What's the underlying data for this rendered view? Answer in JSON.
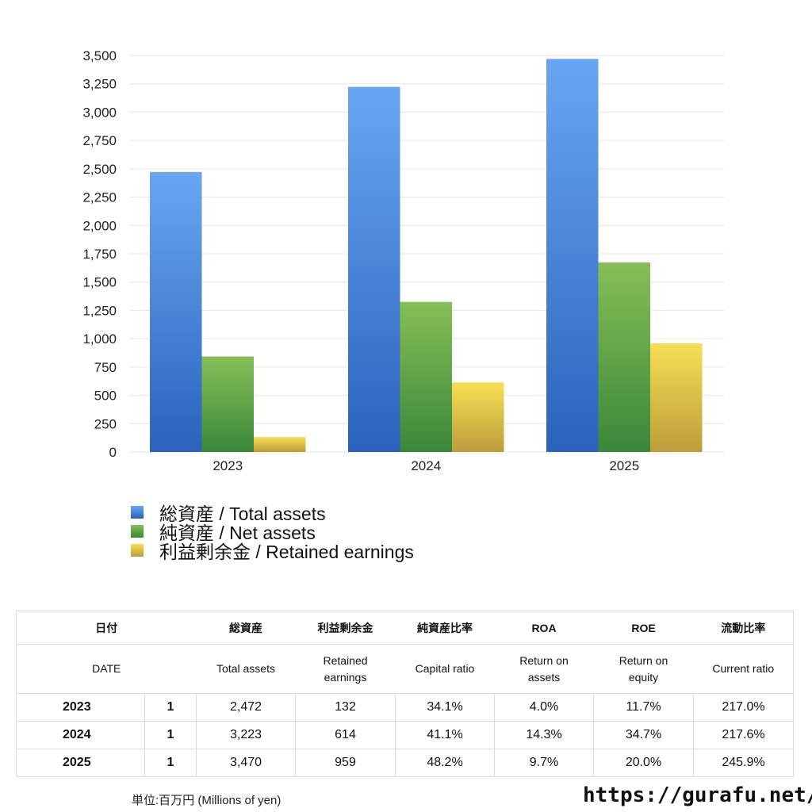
{
  "chart_data": {
    "type": "bar",
    "categories": [
      "2023",
      "2024",
      "2025"
    ],
    "series": [
      {
        "name": "総資産 / Total assets",
        "values": [
          2472,
          3223,
          3470
        ],
        "color_top": "#68a6f3",
        "color_bottom": "#2b62bb"
      },
      {
        "name": "純資産 / Net assets",
        "values": [
          843,
          1325,
          1673
        ],
        "color_top": "#86bf56",
        "color_bottom": "#3a873a"
      },
      {
        "name": "利益剰余金 / Retained earnings",
        "values": [
          132,
          614,
          959
        ],
        "color_top": "#f6df55",
        "color_bottom": "#bd9d3b"
      }
    ],
    "yticks": [
      "0",
      "250",
      "500",
      "750",
      "1,000",
      "1,250",
      "1,500",
      "1,750",
      "2,000",
      "2,250",
      "2,500",
      "2,750",
      "3,000",
      "3,250",
      "3,500"
    ],
    "ylim": [
      0,
      3500
    ],
    "grid": true,
    "legend_placement": "bottom-left"
  },
  "table": {
    "header_jp": [
      "日付",
      "総資産",
      "利益剰余金",
      "純資産比率",
      "ROA",
      "ROE",
      "流動比率"
    ],
    "header_en": [
      "DATE",
      "Total assets",
      "Retained earnings",
      "Capital ratio",
      "Return on assets",
      "Return on equity",
      "Current ratio"
    ],
    "rows": [
      {
        "year": "2023",
        "month": "1",
        "total_assets": "2,472",
        "retained": "132",
        "capital_ratio": "34.1%",
        "roa": "4.0%",
        "roe": "11.7%",
        "current_ratio": "217.0%"
      },
      {
        "year": "2024",
        "month": "1",
        "total_assets": "3,223",
        "retained": "614",
        "capital_ratio": "41.1%",
        "roa": "14.3%",
        "roe": "34.7%",
        "current_ratio": "217.6%"
      },
      {
        "year": "2025",
        "month": "1",
        "total_assets": "3,470",
        "retained": "959",
        "capital_ratio": "48.2%",
        "roa": "9.7%",
        "roe": "20.0%",
        "current_ratio": "245.9%"
      }
    ]
  },
  "footer": {
    "unit": "単位:百万円 (Millions of yen)",
    "site": "https://gurafu.net/"
  }
}
